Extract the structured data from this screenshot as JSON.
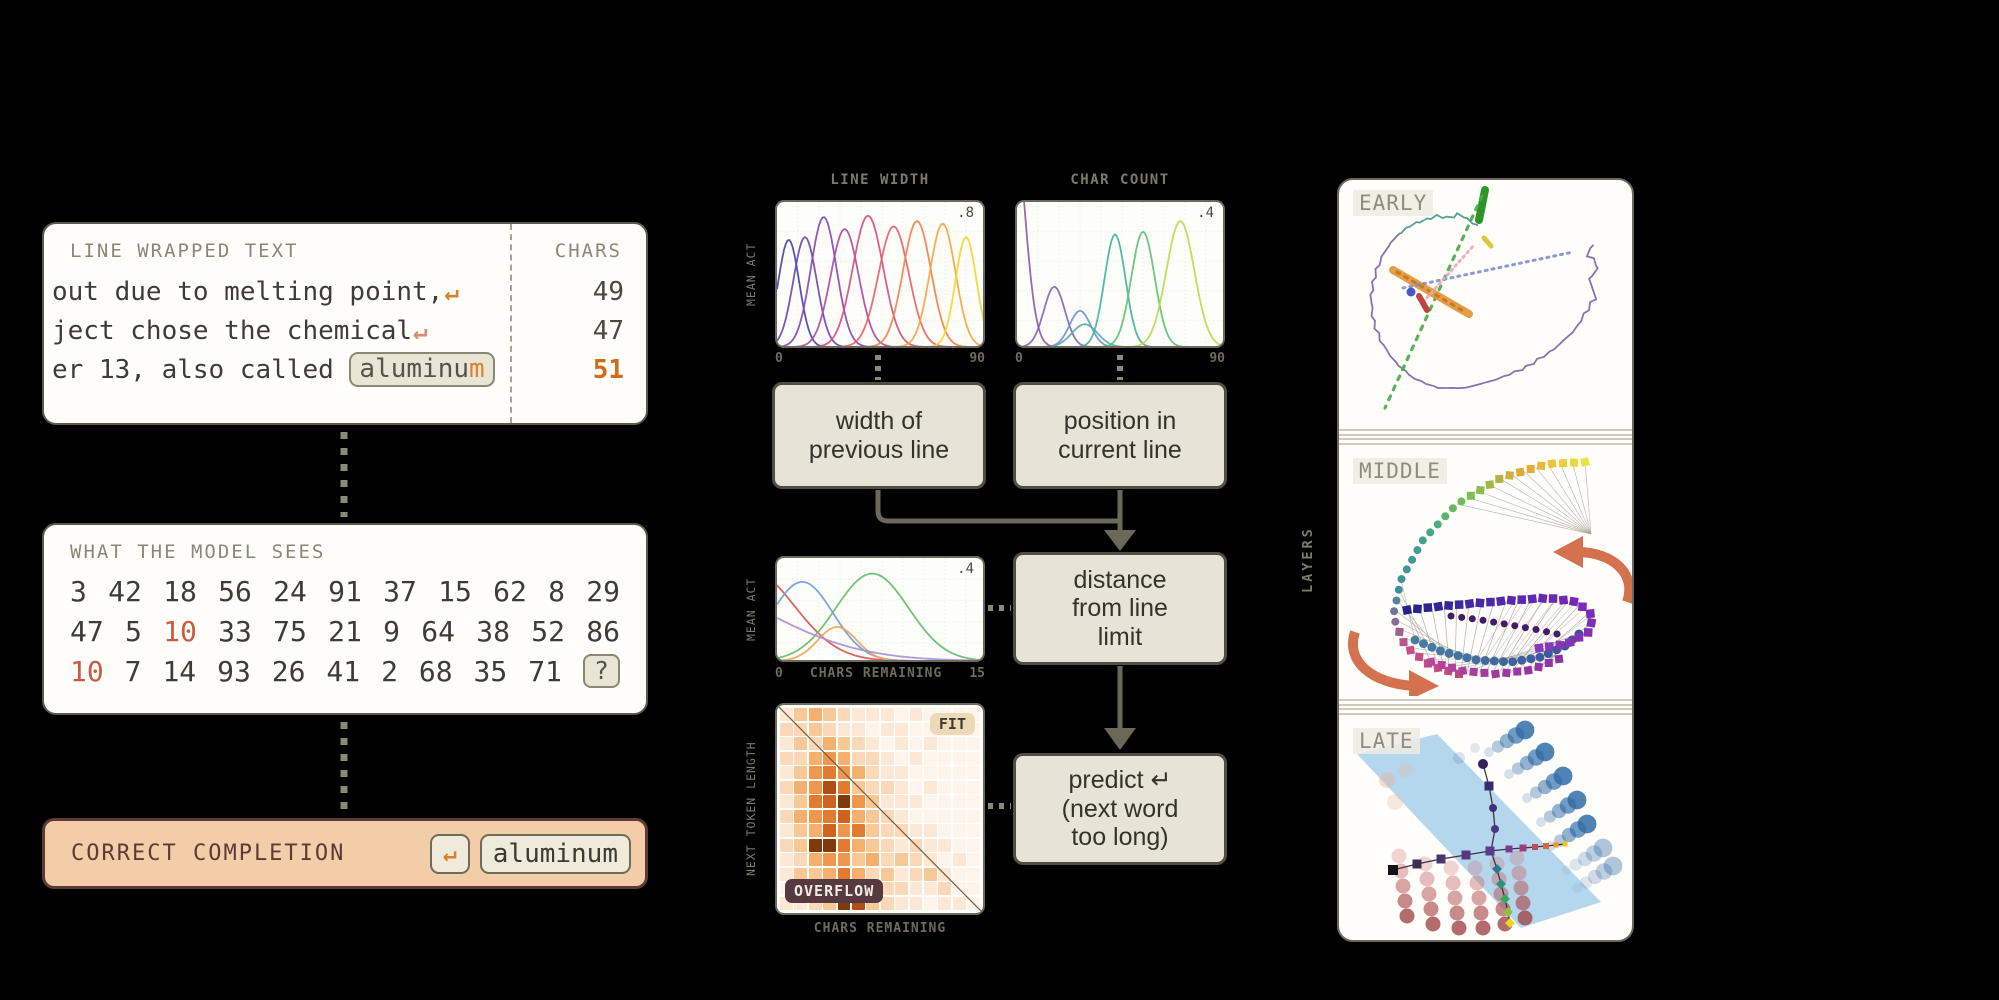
{
  "background_color": "#000000",
  "accent_colors": {
    "orange": "#d9822b",
    "salmon": "#cc5a42",
    "olive": "#5b594a",
    "bar_maroon": "#5d3a36"
  },
  "line_wrapped_card": {
    "title": "LINE WRAPPED TEXT",
    "chars_header": "CHARS",
    "rows": [
      {
        "text": "out due to melting point,",
        "return_symbol": "↵",
        "return_color": "#d9822b",
        "chars": "49",
        "highlight": false
      },
      {
        "text": "ject chose the chemical",
        "return_symbol": "↵",
        "return_color": "#de8a70",
        "chars": "47",
        "highlight": false
      },
      {
        "text": "er 13, also called ",
        "chip": "aluminum",
        "chip_highlight_last": true,
        "chars": "51",
        "highlight": true
      }
    ]
  },
  "model_sees_card": {
    "title": "WHAT THE MODEL SEES",
    "rows": [
      {
        "tokens": [
          "3",
          "42",
          "18",
          "56",
          "24",
          "91",
          "37",
          "15",
          "62",
          "8",
          "29"
        ],
        "red": []
      },
      {
        "tokens": [
          "47",
          "5",
          "10",
          "33",
          "75",
          "21",
          "9",
          "64",
          "38",
          "52",
          "86"
        ],
        "red": [
          2
        ]
      },
      {
        "tokens": [
          "10",
          "7",
          "14",
          "93",
          "26",
          "41",
          "2",
          "68",
          "35",
          "71",
          "?"
        ],
        "red": [
          0
        ],
        "chip_last": true
      }
    ]
  },
  "completion_bar": {
    "label": "CORRECT COMPLETION",
    "return_symbol": "↵",
    "word": "aluminum"
  },
  "middle": {
    "boxes": {
      "box1_lines": [
        "width of",
        "previous line"
      ],
      "box2_lines": [
        "position in",
        "current line"
      ],
      "box3_lines": [
        "distance",
        "from line",
        "limit"
      ],
      "box4_lines": [
        "predict ↵",
        "(next word",
        "too long)"
      ]
    }
  },
  "right_panel": {
    "layers_label": "LAYERS",
    "sections": [
      "EARLY",
      "MIDDLE",
      "LATE"
    ]
  },
  "chart_data": [
    {
      "id": "chart-line-width",
      "type": "line",
      "title": "LINE WIDTH",
      "ylabel": "MEAN ACT",
      "corner_label": ".8",
      "x_ticks": [
        "0",
        "90"
      ],
      "xlim": [
        0,
        90
      ],
      "ymax": 0.8,
      "grid": true,
      "curve_model": "gaussian",
      "curves": [
        {
          "center": 5,
          "width": 4.5,
          "height": 0.8,
          "color": "#4444b0"
        },
        {
          "center": 12,
          "width": 5.0,
          "height": 0.82,
          "color": "#6a46b4"
        },
        {
          "center": 20,
          "width": 5.5,
          "height": 0.97,
          "color": "#8c44b2"
        },
        {
          "center": 29,
          "width": 6.0,
          "height": 0.88,
          "color": "#b0489e"
        },
        {
          "center": 39,
          "width": 6.5,
          "height": 0.98,
          "color": "#d44f82"
        },
        {
          "center": 50,
          "width": 6.5,
          "height": 0.9,
          "color": "#e75f63"
        },
        {
          "center": 60,
          "width": 6.0,
          "height": 0.94,
          "color": "#f28147"
        },
        {
          "center": 71,
          "width": 5.5,
          "height": 0.92,
          "color": "#f9a43c"
        },
        {
          "center": 81,
          "width": 4.5,
          "height": 0.82,
          "color": "#fbd32c"
        }
      ]
    },
    {
      "id": "chart-char-count",
      "type": "line",
      "title": "CHAR COUNT",
      "ylabel": "",
      "corner_label": ".4",
      "x_ticks": [
        "0",
        "90"
      ],
      "xlim": [
        0,
        90
      ],
      "ymax": 0.4,
      "grid": true,
      "curve_model": "gaussian",
      "curves": [
        {
          "center": -2,
          "width": 5.0,
          "height": 1.8,
          "color": "#9557a6"
        },
        {
          "center": 16,
          "width": 4.5,
          "height": 0.45,
          "color": "#7e68b2"
        },
        {
          "center": 27,
          "width": 4.5,
          "height": 0.27,
          "color": "#6e93c6"
        },
        {
          "center": 29,
          "width": 5.5,
          "height": 0.17,
          "color": "#57aab2"
        },
        {
          "center": 42,
          "width": 4.5,
          "height": 0.84,
          "color": "#43b39b"
        },
        {
          "center": 54,
          "width": 5.0,
          "height": 0.86,
          "color": "#5ec077"
        },
        {
          "center": 70,
          "width": 6.0,
          "height": 0.94,
          "color": "#bcd94c"
        }
      ]
    },
    {
      "id": "chart-chars-remaining",
      "type": "line",
      "title": "",
      "ylabel": "MEAN ACT",
      "xlabel": "CHARS REMAINING",
      "corner_label": ".4",
      "x_ticks": [
        "0",
        "15"
      ],
      "xlim": [
        0,
        15
      ],
      "ymax": 0.4,
      "grid": true,
      "curve_model": "gaussian",
      "curves": [
        {
          "center": -2.0,
          "width": 3.2,
          "height": 1.0,
          "color": "#d85550"
        },
        {
          "center": 1.8,
          "width": 2.2,
          "height": 0.86,
          "color": "#6f9fd8"
        },
        {
          "center": 6.8,
          "width": 2.6,
          "height": 0.95,
          "color": "#63bd6a"
        },
        {
          "center": 4.3,
          "width": 1.4,
          "height": 0.37,
          "color": "#f2a355"
        },
        {
          "center": -8.0,
          "width": 7.0,
          "height": 0.9,
          "color": "#a98fd4"
        }
      ]
    },
    {
      "id": "heatmap",
      "type": "heatmap",
      "xlabel": "CHARS REMAINING",
      "ylabel": "NEXT TOKEN LENGTH",
      "region_labels": {
        "upper_right": "FIT",
        "lower_left": "OVERFLOW"
      },
      "diagonal": true,
      "palette": [
        "#fdf5ec",
        "#fce8d4",
        "#fbd9b8",
        "#f9c897",
        "#f5b070",
        "#ee974e",
        "#e27b31",
        "#cf621f",
        "#b04e14",
        "#7f3a0c"
      ],
      "matrix": [
        [
          1,
          3,
          4,
          3,
          2,
          1,
          1,
          1,
          0,
          1,
          0,
          0,
          0,
          0
        ],
        [
          2,
          2,
          3,
          2,
          1,
          1,
          0,
          1,
          1,
          0,
          0,
          0,
          0,
          0
        ],
        [
          1,
          3,
          2,
          4,
          3,
          2,
          1,
          0,
          1,
          0,
          1,
          0,
          0,
          0
        ],
        [
          2,
          2,
          4,
          5,
          4,
          2,
          2,
          1,
          0,
          1,
          0,
          0,
          0,
          0
        ],
        [
          1,
          3,
          5,
          6,
          5,
          4,
          2,
          1,
          1,
          0,
          0,
          0,
          0,
          0
        ],
        [
          2,
          4,
          5,
          8,
          6,
          3,
          2,
          2,
          1,
          0,
          1,
          0,
          0,
          0
        ],
        [
          1,
          3,
          6,
          7,
          9,
          5,
          3,
          1,
          1,
          1,
          0,
          0,
          0,
          0
        ],
        [
          2,
          4,
          5,
          6,
          7,
          4,
          3,
          2,
          1,
          0,
          0,
          0,
          0,
          0
        ],
        [
          1,
          3,
          4,
          7,
          5,
          6,
          3,
          2,
          2,
          1,
          1,
          0,
          0,
          0
        ],
        [
          2,
          3,
          9,
          9,
          6,
          4,
          3,
          2,
          1,
          2,
          1,
          1,
          0,
          0
        ],
        [
          1,
          2,
          4,
          5,
          5,
          3,
          4,
          2,
          3,
          2,
          1,
          0,
          1,
          0
        ],
        [
          1,
          3,
          3,
          4,
          6,
          4,
          2,
          3,
          1,
          2,
          3,
          1,
          0,
          0
        ],
        [
          0,
          2,
          3,
          4,
          7,
          3,
          4,
          2,
          2,
          1,
          1,
          2,
          0,
          0
        ],
        [
          1,
          1,
          2,
          3,
          9,
          8,
          3,
          2,
          1,
          1,
          0,
          1,
          1,
          0
        ]
      ]
    }
  ]
}
